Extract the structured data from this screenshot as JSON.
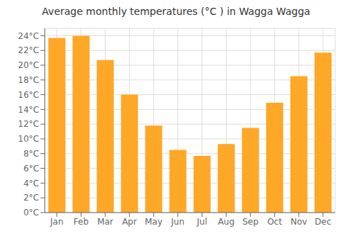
{
  "chart_data": {
    "type": "bar",
    "title": "Average monthly temperatures (°C ) in Wagga Wagga",
    "categories": [
      "Jan",
      "Feb",
      "Mar",
      "Apr",
      "May",
      "Jun",
      "Jul",
      "Aug",
      "Sep",
      "Oct",
      "Nov",
      "Dec"
    ],
    "values": [
      23.7,
      24.0,
      20.7,
      16.0,
      11.8,
      8.5,
      7.7,
      9.3,
      11.5,
      14.9,
      18.5,
      21.7
    ],
    "color": "#FFA726",
    "ylim": [
      0,
      25
    ],
    "yticks": [
      {
        "value": 0,
        "label": "0°C"
      },
      {
        "value": 2,
        "label": "2°C"
      },
      {
        "value": 4,
        "label": "4°C"
      },
      {
        "value": 6,
        "label": "6°C"
      },
      {
        "value": 8,
        "label": "8°C"
      },
      {
        "value": 10,
        "label": "10°C"
      },
      {
        "value": 12,
        "label": "12°C"
      },
      {
        "value": 14,
        "label": "14°C"
      },
      {
        "value": 16,
        "label": "16°C"
      },
      {
        "value": 18,
        "label": "18°C"
      },
      {
        "value": 20,
        "label": "20°C"
      },
      {
        "value": 22,
        "label": "22°C"
      },
      {
        "value": 24,
        "label": "24°C"
      }
    ],
    "grid": true
  }
}
